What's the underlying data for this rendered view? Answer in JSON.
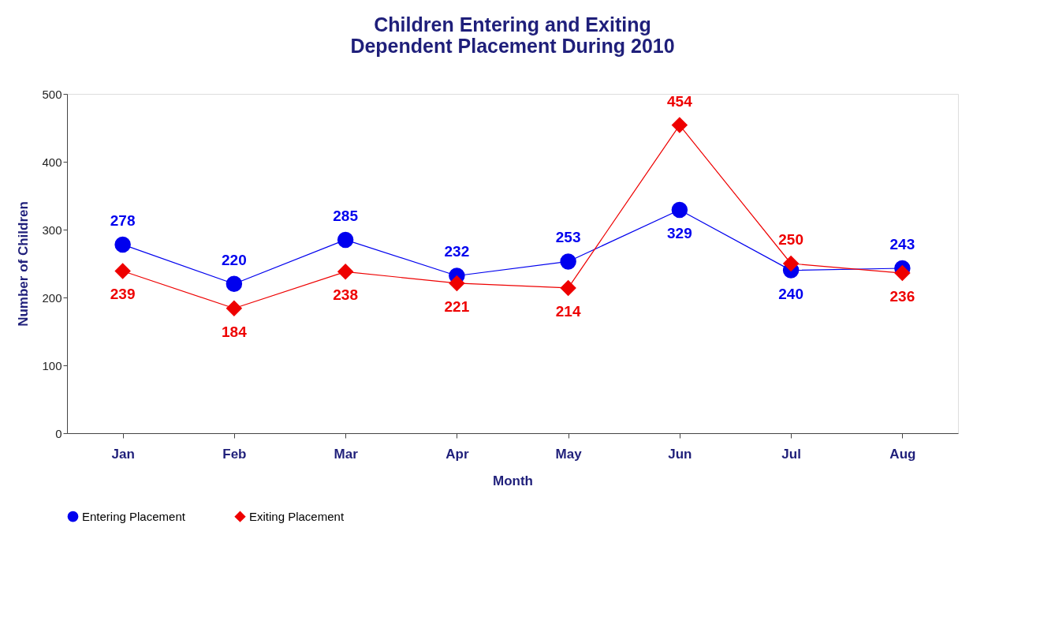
{
  "chart_data": {
    "type": "line",
    "title": [
      "Children Entering and Exiting",
      "Dependent Placement During 2010"
    ],
    "xlabel": "Month",
    "ylabel": "Number of Children",
    "categories": [
      "Jan",
      "Feb",
      "Mar",
      "Apr",
      "May",
      "Jun",
      "Jul",
      "Aug"
    ],
    "series": [
      {
        "name": "Entering Placement",
        "color": "#0000ee",
        "marker": "circle",
        "values": [
          278,
          220,
          285,
          232,
          253,
          329,
          240,
          243
        ]
      },
      {
        "name": "Exiting Placement",
        "color": "#ee0000",
        "marker": "diamond",
        "values": [
          239,
          184,
          238,
          221,
          214,
          454,
          250,
          236
        ]
      }
    ],
    "ylim": [
      0,
      500
    ],
    "yticks": [
      0,
      100,
      200,
      300,
      400,
      500
    ],
    "grid": false,
    "legend": "bottom",
    "data_labels": true,
    "line_style": "solid"
  }
}
